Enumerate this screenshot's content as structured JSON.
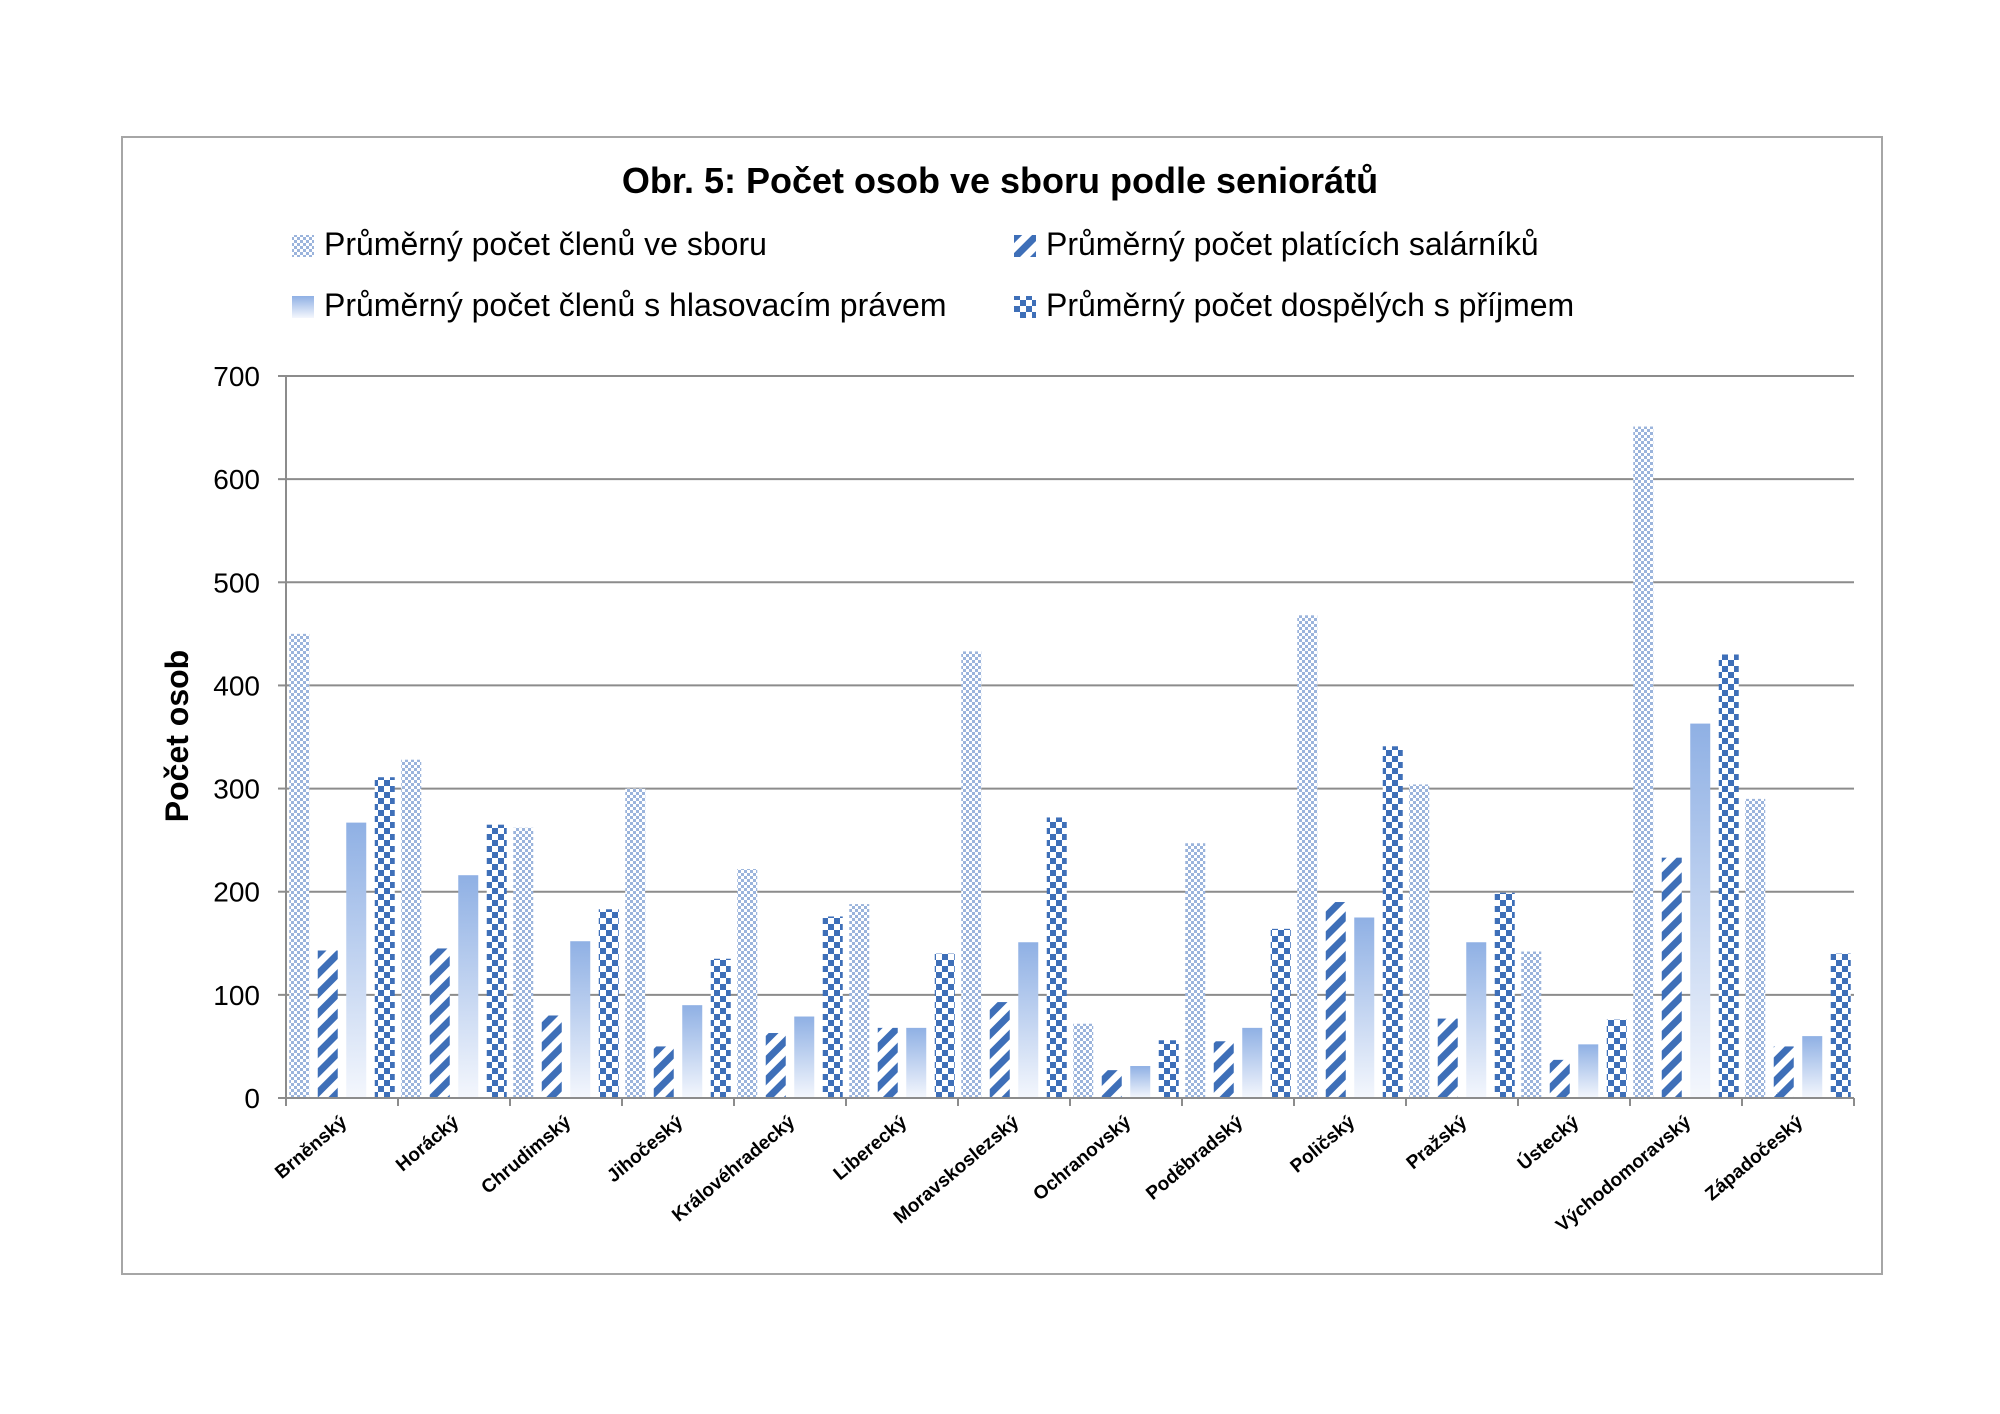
{
  "chart_data": {
    "type": "bar",
    "title": "Obr. 5: Počet osob ve sboru podle seniorátů",
    "xlabel": "",
    "ylabel": "Počet osob",
    "ylim": [
      0,
      700
    ],
    "yticks": [
      0,
      100,
      200,
      300,
      400,
      500,
      600,
      700
    ],
    "grid": true,
    "legend_position": "top",
    "categories": [
      "Brněnský",
      "Horácký",
      "Chrudimský",
      "Jihočeský",
      "Královéhradecký",
      "Liberecký",
      "Moravskoslezský",
      "Ochranovský",
      "Poděbradský",
      "Poličský",
      "Pražský",
      "Ústecký",
      "Východomoravský",
      "Západočeský"
    ],
    "series": [
      {
        "name": "Průměrný počet členů ve sboru",
        "pattern": "crosshatch",
        "color": "#9bb4dc",
        "values": [
          450,
          328,
          262,
          300,
          222,
          188,
          433,
          72,
          247,
          468,
          304,
          142,
          651,
          290
        ]
      },
      {
        "name": "Průměrný počet platících salárníků",
        "pattern": "diagonal",
        "color": "#3e6fb8",
        "values": [
          143,
          145,
          80,
          50,
          63,
          68,
          93,
          27,
          55,
          190,
          77,
          37,
          233,
          50
        ]
      },
      {
        "name": "Průměrný počet členů s hlasovacím právem",
        "pattern": "gradient",
        "color": "#8fb0e4",
        "values": [
          267,
          216,
          152,
          90,
          79,
          68,
          151,
          31,
          68,
          175,
          151,
          52,
          363,
          60
        ]
      },
      {
        "name": "Průměrný počet dospělých s příjmem",
        "pattern": "checker",
        "color": "#3e6fb8",
        "values": [
          311,
          265,
          183,
          135,
          176,
          140,
          272,
          56,
          164,
          341,
          199,
          76,
          430,
          140
        ]
      }
    ]
  }
}
